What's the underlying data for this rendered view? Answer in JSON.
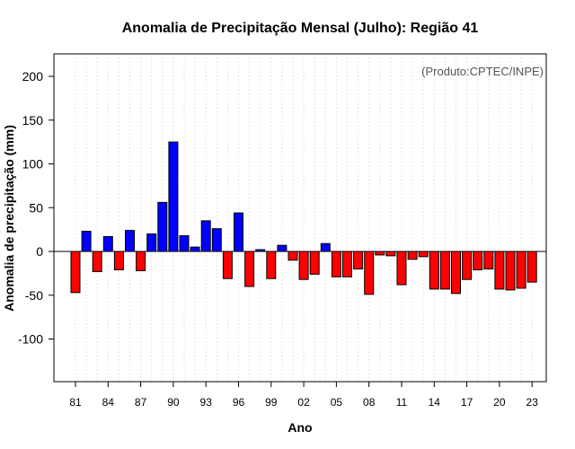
{
  "chart_data": {
    "type": "bar",
    "title": "Anomalia de Precipitação Mensal (Julho): Região 41",
    "xlabel": "Ano",
    "ylabel": "Anomalia de precipitação (mm)",
    "credit": "(Produto:CPTEC/INPE)",
    "ylim": [
      -150,
      225
    ],
    "yticks": [
      -100,
      -50,
      0,
      50,
      100,
      150,
      200
    ],
    "xtick_labels": [
      "81",
      "84",
      "87",
      "90",
      "93",
      "96",
      "99",
      "02",
      "05",
      "08",
      "11",
      "14",
      "17",
      "20",
      "23"
    ],
    "grid": "vertical dotted",
    "categories": [
      "1981",
      "1982",
      "1983",
      "1984",
      "1985",
      "1986",
      "1987",
      "1988",
      "1989",
      "1990",
      "1991",
      "1992",
      "1993",
      "1994",
      "1995",
      "1996",
      "1997",
      "1998",
      "1999",
      "2000",
      "2001",
      "2002",
      "2003",
      "2004",
      "2005",
      "2006",
      "2007",
      "2008",
      "2009",
      "2010",
      "2011",
      "2012",
      "2013",
      "2014",
      "2015",
      "2016",
      "2017",
      "2018",
      "2019",
      "2020",
      "2021",
      "2022",
      "2023"
    ],
    "values": [
      -47,
      23,
      -23,
      17,
      -21,
      24,
      -22,
      20,
      56,
      125,
      18,
      5,
      35,
      26,
      -31,
      44,
      -40,
      2,
      -31,
      7,
      -10,
      -32,
      -26,
      9,
      -29,
      -29,
      -20,
      -49,
      -4,
      -5,
      -38,
      -9,
      -6,
      -43,
      -43,
      -48,
      -32,
      -21,
      -20,
      -43,
      -44,
      -42,
      -35
    ],
    "colors": {
      "positive": "#0000ff",
      "negative": "#ff0000",
      "zero_line": "#000000",
      "grid": "#d3d3d3"
    }
  }
}
